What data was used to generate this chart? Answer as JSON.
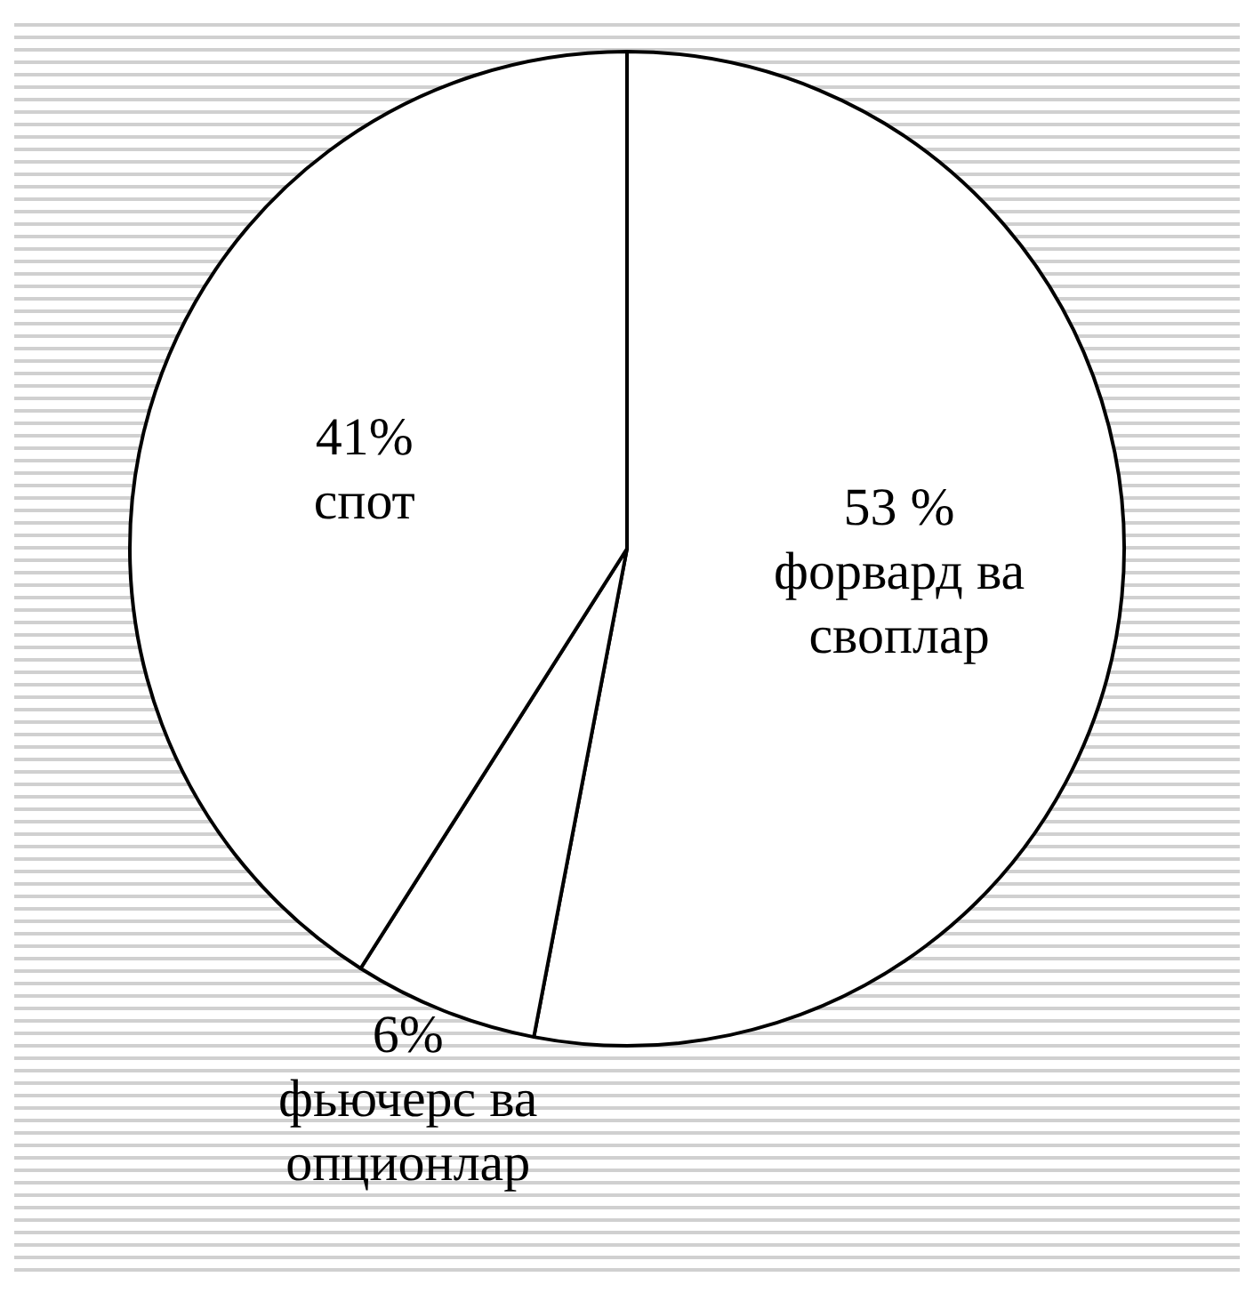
{
  "chart_data": {
    "type": "pie",
    "categories": [
      "форвард ва своплар",
      "фьючерс ва опционлар",
      "спот"
    ],
    "values": [
      53,
      6,
      41
    ],
    "colors": [
      "#ffffff",
      "#ffffff",
      "#ffffff"
    ],
    "value_labels": [
      "53 %",
      "6%",
      "41%"
    ],
    "legend": false
  }
}
